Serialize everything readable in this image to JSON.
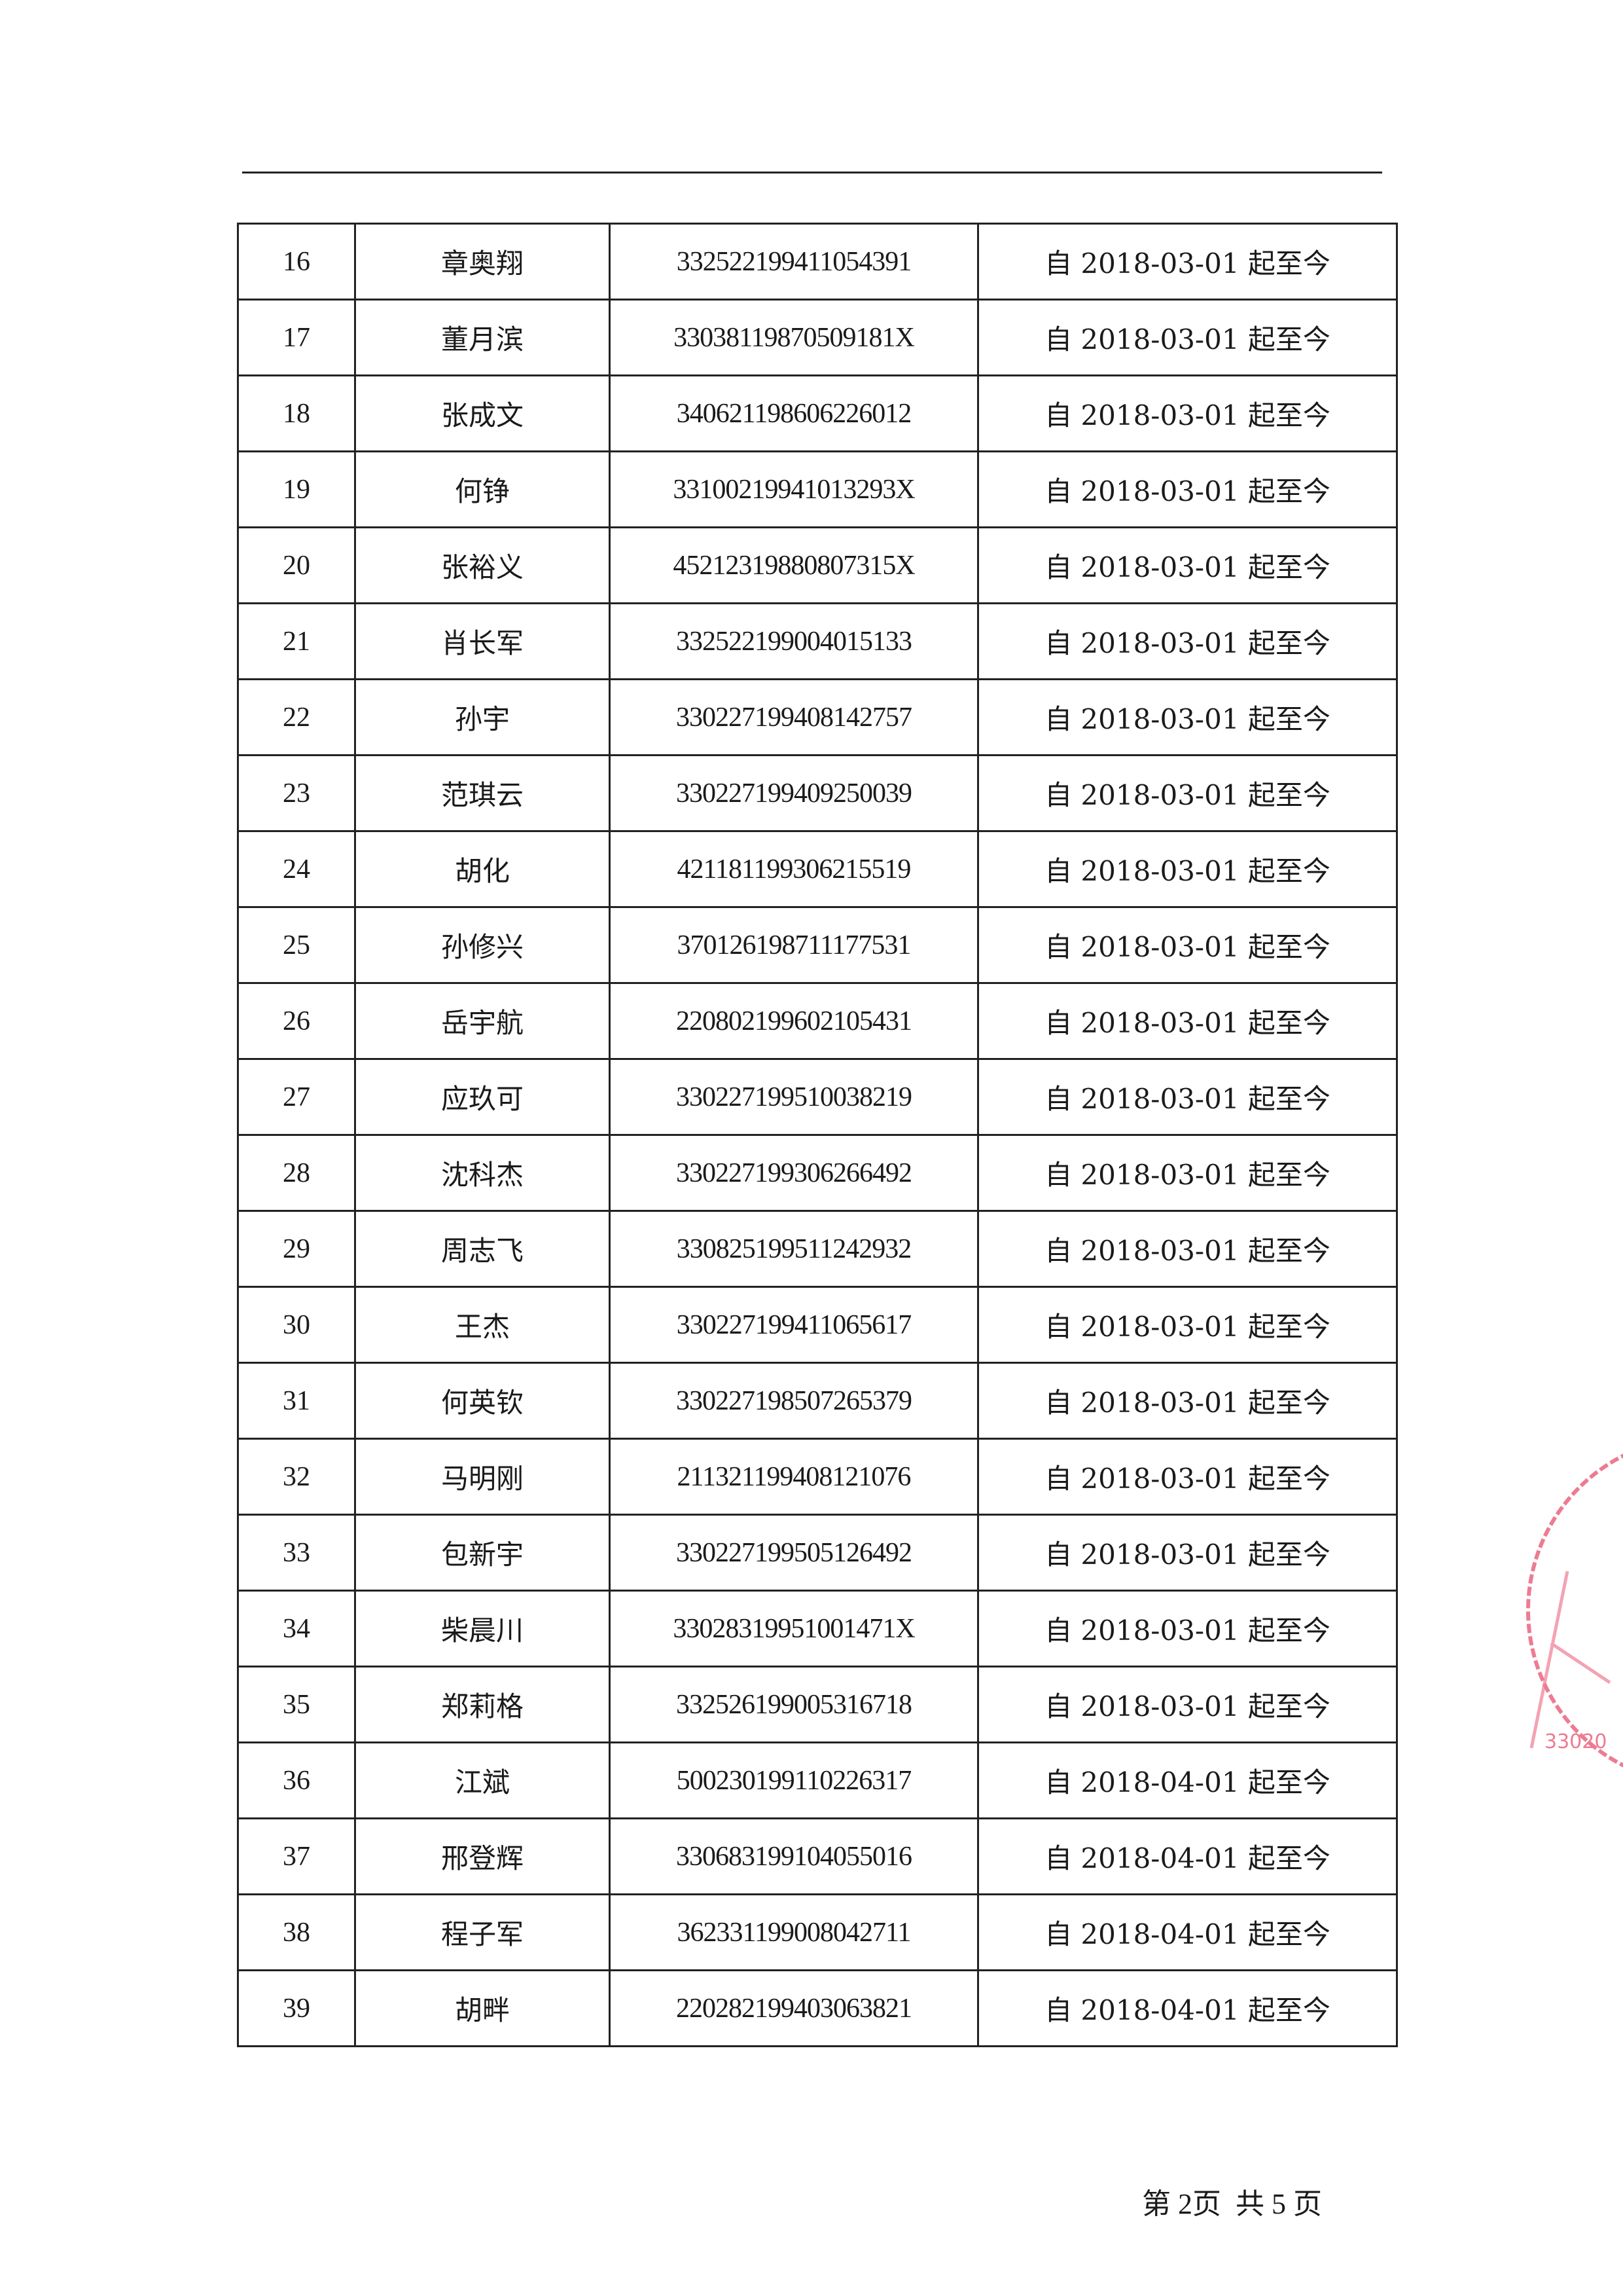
{
  "table": {
    "rows": [
      {
        "no": "16",
        "name": "章奥翔",
        "id": "332522199411054391",
        "period": "自 2018-03-01 起至今"
      },
      {
        "no": "17",
        "name": "董月滨",
        "id": "33038119870509181X",
        "period": "自 2018-03-01 起至今"
      },
      {
        "no": "18",
        "name": "张成文",
        "id": "340621198606226012",
        "period": "自 2018-03-01 起至今"
      },
      {
        "no": "19",
        "name": "何铮",
        "id": "33100219941013293X",
        "period": "自 2018-03-01 起至今"
      },
      {
        "no": "20",
        "name": "张裕义",
        "id": "45212319880807315X",
        "period": "自 2018-03-01 起至今"
      },
      {
        "no": "21",
        "name": "肖长军",
        "id": "332522199004015133",
        "period": "自 2018-03-01 起至今"
      },
      {
        "no": "22",
        "name": "孙宇",
        "id": "330227199408142757",
        "period": "自 2018-03-01 起至今"
      },
      {
        "no": "23",
        "name": "范琪云",
        "id": "330227199409250039",
        "period": "自 2018-03-01 起至今"
      },
      {
        "no": "24",
        "name": "胡化",
        "id": "421181199306215519",
        "period": "自 2018-03-01 起至今"
      },
      {
        "no": "25",
        "name": "孙修兴",
        "id": "370126198711177531",
        "period": "自 2018-03-01 起至今"
      },
      {
        "no": "26",
        "name": "岳宇航",
        "id": "220802199602105431",
        "period": "自 2018-03-01 起至今"
      },
      {
        "no": "27",
        "name": "应玖可",
        "id": "330227199510038219",
        "period": "自 2018-03-01 起至今"
      },
      {
        "no": "28",
        "name": "沈科杰",
        "id": "330227199306266492",
        "period": "自 2018-03-01 起至今"
      },
      {
        "no": "29",
        "name": "周志飞",
        "id": "330825199511242932",
        "period": "自 2018-03-01 起至今"
      },
      {
        "no": "30",
        "name": "王杰",
        "id": "330227199411065617",
        "period": "自 2018-03-01 起至今"
      },
      {
        "no": "31",
        "name": "何英钦",
        "id": "330227198507265379",
        "period": "自 2018-03-01 起至今"
      },
      {
        "no": "32",
        "name": "马明刚",
        "id": "211321199408121076",
        "period": "自 2018-03-01 起至今"
      },
      {
        "no": "33",
        "name": "包新宇",
        "id": "330227199505126492",
        "period": "自 2018-03-01 起至今"
      },
      {
        "no": "34",
        "name": "柴晨川",
        "id": "33028319951001471X",
        "period": "自 2018-03-01 起至今"
      },
      {
        "no": "35",
        "name": "郑莉格",
        "id": "332526199005316718",
        "period": "自 2018-03-01 起至今"
      },
      {
        "no": "36",
        "name": "江斌",
        "id": "500230199110226317",
        "period": "自 2018-04-01 起至今"
      },
      {
        "no": "37",
        "name": "邢登辉",
        "id": "330683199104055016",
        "period": "自 2018-04-01 起至今"
      },
      {
        "no": "38",
        "name": "程子军",
        "id": "362331199008042711",
        "period": "自 2018-04-01 起至今"
      },
      {
        "no": "39",
        "name": "胡畔",
        "id": "220282199403063821",
        "period": "自 2018-04-01 起至今"
      }
    ]
  },
  "footer": {
    "page_label": "第 2页  共 5 页"
  },
  "stamp": {
    "partial_text": "33020",
    "color": "#e8506e"
  }
}
